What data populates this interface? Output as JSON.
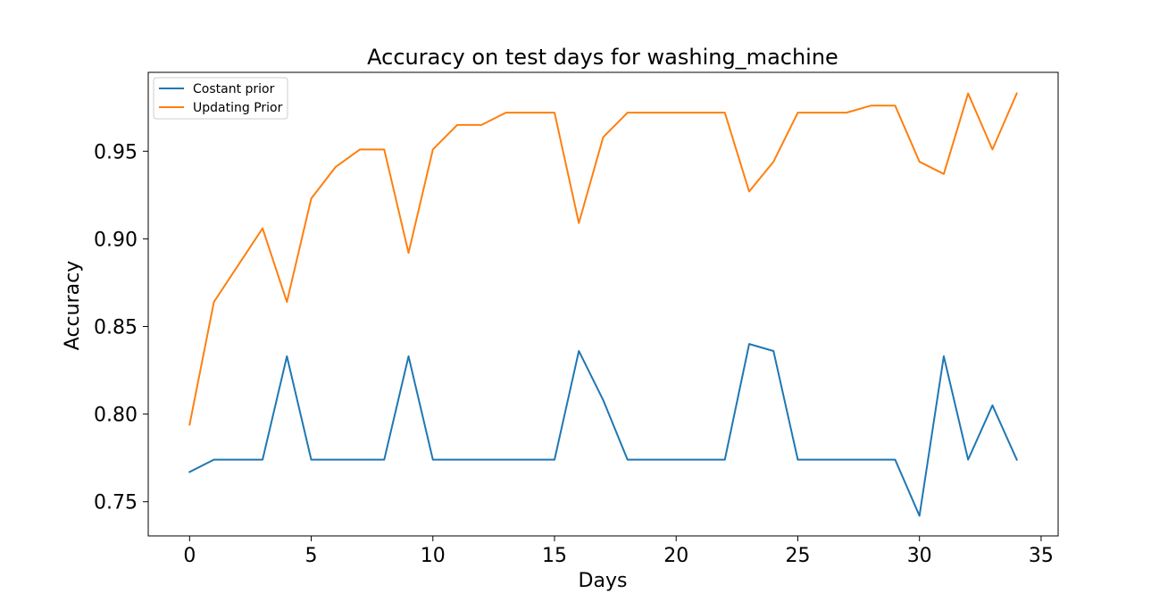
{
  "chart_data": {
    "type": "line",
    "title": "Accuracy on test days for washing_machine",
    "xlabel": "Days",
    "ylabel": "Accuracy",
    "xlim": [
      -1.7,
      35.7
    ],
    "ylim": [
      0.7305,
      0.995
    ],
    "xticks": [
      0,
      5,
      10,
      15,
      20,
      25,
      30,
      35
    ],
    "xtick_labels": [
      "0",
      "5",
      "10",
      "15",
      "20",
      "25",
      "30",
      "35"
    ],
    "yticks": [
      0.75,
      0.8,
      0.85,
      0.9,
      0.95
    ],
    "ytick_labels": [
      "0.75",
      "0.80",
      "0.85",
      "0.90",
      "0.95"
    ],
    "grid": false,
    "legend_position": "upper-left",
    "x": [
      0,
      1,
      2,
      3,
      4,
      5,
      6,
      7,
      8,
      9,
      10,
      11,
      12,
      13,
      14,
      15,
      16,
      17,
      18,
      19,
      20,
      21,
      22,
      23,
      24,
      25,
      26,
      27,
      28,
      29,
      30,
      31,
      32,
      33,
      34
    ],
    "series": [
      {
        "name": "Costant prior",
        "color": "#1f77b4",
        "values": [
          0.767,
          0.774,
          0.774,
          0.774,
          0.833,
          0.774,
          0.774,
          0.774,
          0.774,
          0.833,
          0.774,
          0.774,
          0.774,
          0.774,
          0.774,
          0.774,
          0.836,
          0.808,
          0.774,
          0.774,
          0.774,
          0.774,
          0.774,
          0.84,
          0.836,
          0.774,
          0.774,
          0.774,
          0.774,
          0.774,
          0.742,
          0.833,
          0.774,
          0.805,
          0.774
        ]
      },
      {
        "name": "Updating Prior",
        "color": "#ff7f0e",
        "values": [
          0.794,
          0.864,
          0.885,
          0.906,
          0.864,
          0.923,
          0.941,
          0.951,
          0.951,
          0.892,
          0.951,
          0.965,
          0.965,
          0.972,
          0.972,
          0.972,
          0.909,
          0.958,
          0.972,
          0.972,
          0.972,
          0.972,
          0.972,
          0.927,
          0.944,
          0.972,
          0.972,
          0.972,
          0.976,
          0.976,
          0.944,
          0.937,
          0.983,
          0.951,
          0.983
        ]
      }
    ]
  }
}
